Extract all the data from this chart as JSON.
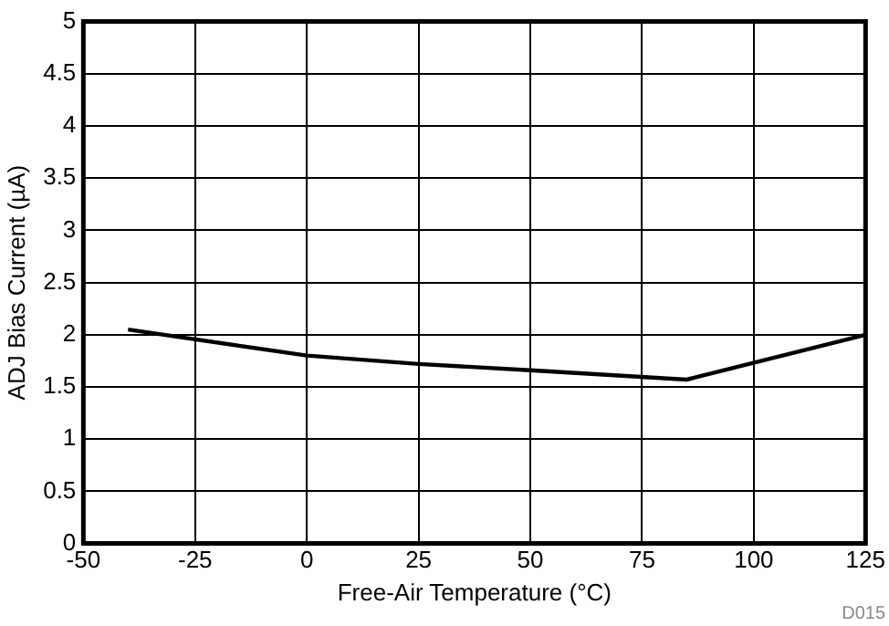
{
  "chart_data": {
    "type": "line",
    "xlabel": "Free-Air Temperature (°C)",
    "ylabel": "ADJ Bias Current (µA)",
    "x": [
      -40,
      0,
      25,
      50,
      85,
      125
    ],
    "series": [
      {
        "color": "#000000",
        "values": [
          2.05,
          1.8,
          1.72,
          1.66,
          1.57,
          2.0
        ]
      }
    ],
    "xlim": [
      -50,
      125
    ],
    "xticks": [
      -50,
      -25,
      0,
      25,
      50,
      75,
      100,
      125
    ],
    "ylim": [
      0,
      5
    ],
    "yticks": [
      0,
      0.5,
      1,
      1.5,
      2,
      2.5,
      3,
      3.5,
      4,
      4.5,
      5
    ],
    "grid": true,
    "legend": false,
    "marker": "none",
    "line_style": "solid",
    "annotations": [
      "D015"
    ]
  }
}
